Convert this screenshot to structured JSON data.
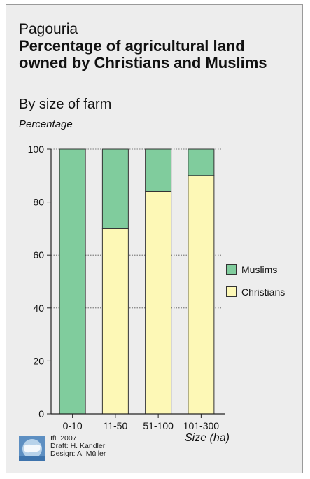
{
  "header": {
    "place": "Pagouria",
    "title": "Percentage of agricultural land owned by Christians and Muslims",
    "subtitle": "By size of farm"
  },
  "credits": {
    "line1": "IfL 2007",
    "line2": "Draft: H. Kandler",
    "line3": "Design: A. Müller"
  },
  "chart_data": {
    "type": "bar",
    "stacked": true,
    "title": "Percentage of agricultural land owned by Christians and Muslims",
    "subtitle": "By size of farm",
    "ylabel": "Percentage",
    "xlabel": "Size (ha)",
    "categories": [
      "0-10",
      "11-50",
      "51-100",
      "101-300"
    ],
    "series": [
      {
        "name": "Christians",
        "color": "#fdf8b6",
        "values": [
          0,
          70,
          84,
          90
        ]
      },
      {
        "name": "Muslims",
        "color": "#80cc9d",
        "values": [
          100,
          30,
          16,
          10
        ]
      }
    ],
    "ylim": [
      0,
      100
    ],
    "yticks": [
      0,
      20,
      40,
      60,
      80,
      100
    ],
    "grid": true,
    "legend": "right",
    "legend_order": [
      "Muslims",
      "Christians"
    ]
  }
}
